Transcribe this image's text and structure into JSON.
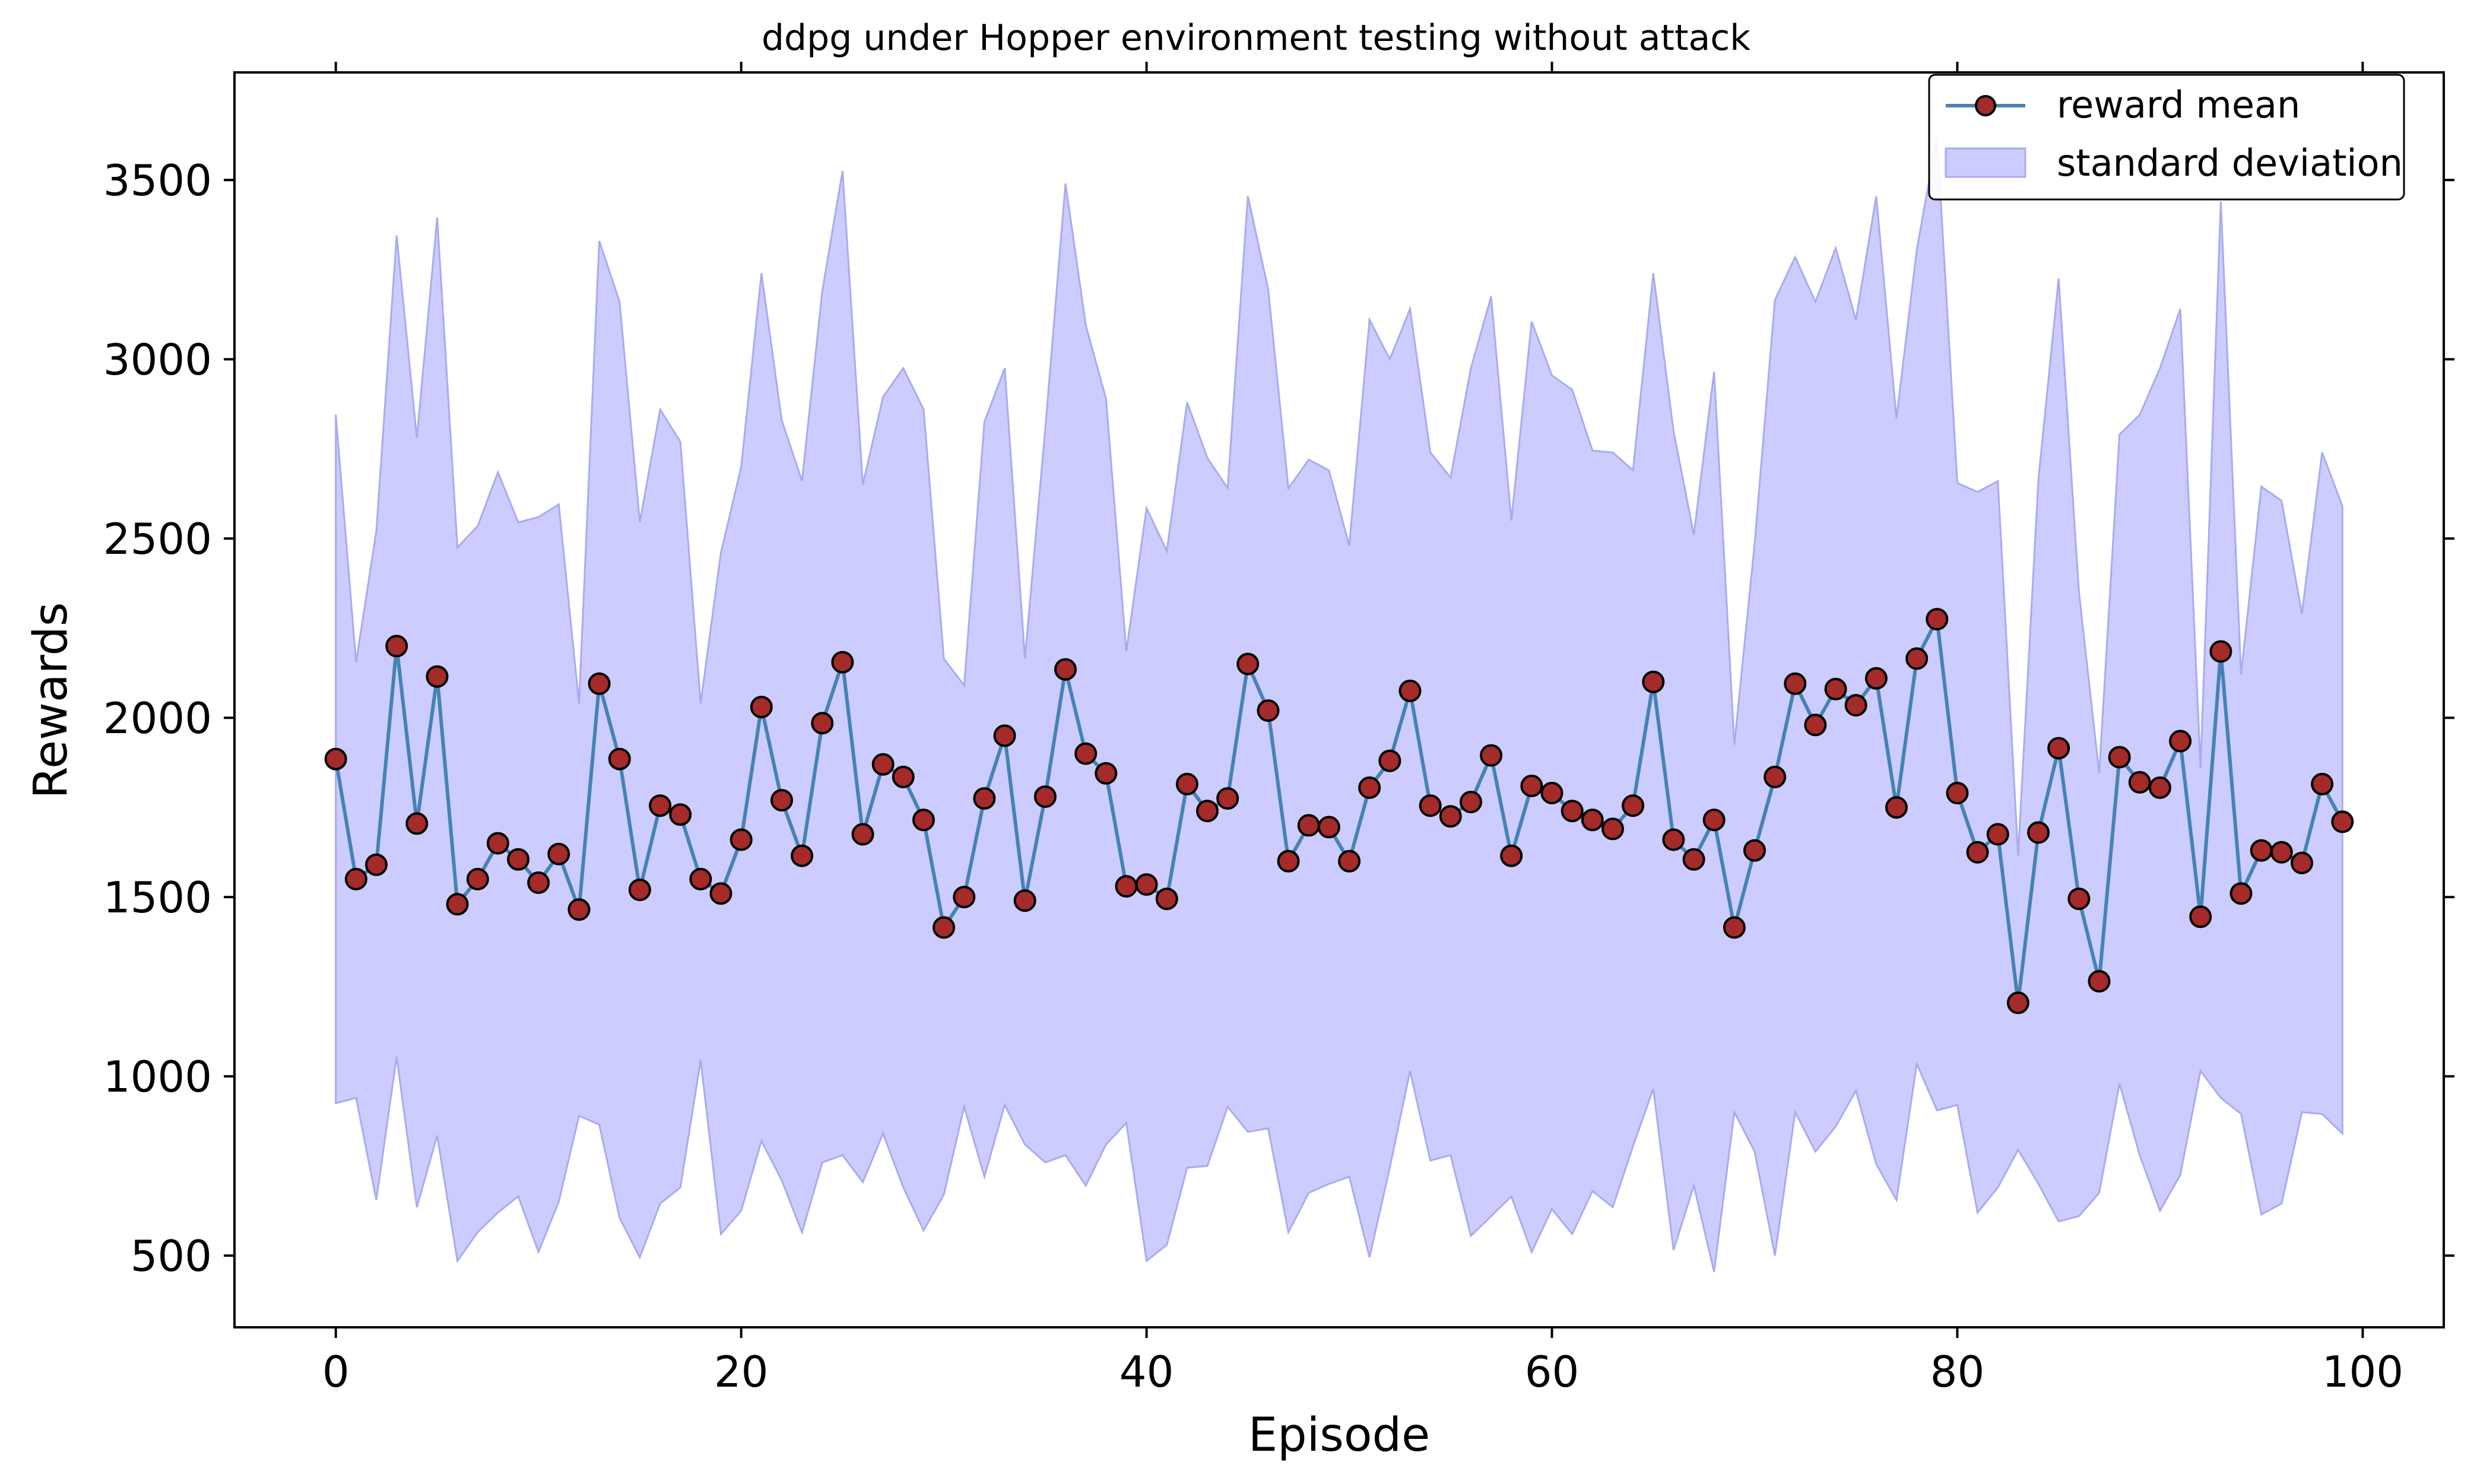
{
  "chart_data": {
    "type": "line",
    "title": "ddpg under Hopper environment testing without attack",
    "xlabel": "Episode",
    "ylabel": "Rewards",
    "xlim": [
      -5,
      104
    ],
    "ylim": [
      300,
      3800
    ],
    "xticks": [
      0,
      20,
      40,
      60,
      80,
      100
    ],
    "yticks": [
      500,
      1000,
      1500,
      2000,
      2500,
      3000,
      3500
    ],
    "grid": false,
    "legend_position": "top-right",
    "colors": {
      "line": "#4682b4",
      "marker_fill": "#a52a2a",
      "marker_edge": "#000000",
      "band": "#ccccff",
      "band_edge": "#aaaaf0"
    },
    "series": [
      {
        "name": "reward mean",
        "kind": "line",
        "x": [
          0,
          1,
          2,
          3,
          4,
          5,
          6,
          7,
          8,
          9,
          10,
          11,
          12,
          13,
          14,
          15,
          16,
          17,
          18,
          19,
          20,
          21,
          22,
          23,
          24,
          25,
          26,
          27,
          28,
          29,
          30,
          31,
          32,
          33,
          34,
          35,
          36,
          37,
          38,
          39,
          40,
          41,
          42,
          43,
          44,
          45,
          46,
          47,
          48,
          49,
          50,
          51,
          52,
          53,
          54,
          55,
          56,
          57,
          58,
          59,
          60,
          61,
          62,
          63,
          64,
          65,
          66,
          67,
          68,
          69,
          70,
          71,
          72,
          73,
          74,
          75,
          76,
          77,
          78,
          79,
          80,
          81,
          82,
          83,
          84,
          85,
          86,
          87,
          88,
          89,
          90,
          91,
          92,
          93,
          94,
          95,
          96,
          97,
          98,
          99
        ],
        "values": [
          1885,
          1550,
          1590,
          2200,
          1705,
          2115,
          1480,
          1550,
          1650,
          1605,
          1540,
          1620,
          1465,
          2095,
          1885,
          1520,
          1755,
          1730,
          1550,
          1510,
          1660,
          2030,
          1770,
          1615,
          1985,
          2155,
          1675,
          1870,
          1835,
          1715,
          1415,
          1500,
          1775,
          1950,
          1490,
          1780,
          2135,
          1900,
          1845,
          1530,
          1535,
          1495,
          1815,
          1740,
          1775,
          2150,
          2020,
          1600,
          1700,
          1695,
          1600,
          1805,
          1880,
          2075,
          1755,
          1725,
          1765,
          1895,
          1615,
          1810,
          1790,
          1740,
          1715,
          1690,
          1755,
          2100,
          1660,
          1605,
          1715,
          1415,
          1630,
          1835,
          2095,
          1980,
          2080,
          2035,
          2110,
          1750,
          2165,
          2275,
          1790,
          1625,
          1675,
          1205,
          1680,
          1915,
          1495,
          1265,
          1890,
          1820,
          1805,
          1935,
          1445,
          2185,
          1510,
          1630,
          1625,
          1595,
          1815,
          1710
        ]
      },
      {
        "name": "standard deviation",
        "kind": "band",
        "upper": [
          2845,
          2155,
          2520,
          3345,
          2780,
          3395,
          2475,
          2535,
          2685,
          2545,
          2560,
          2595,
          2040,
          3330,
          3160,
          2545,
          2860,
          2770,
          2040,
          2460,
          2700,
          3240,
          2830,
          2660,
          3190,
          3525,
          2650,
          2895,
          2975,
          2860,
          2165,
          2090,
          2825,
          2975,
          2165,
          2805,
          3490,
          3095,
          2890,
          2185,
          2585,
          2465,
          2880,
          2725,
          2640,
          3455,
          3195,
          2640,
          2720,
          2690,
          2480,
          3110,
          3000,
          3140,
          2740,
          2670,
          2975,
          3175,
          2550,
          3105,
          2955,
          2915,
          2745,
          2740,
          2690,
          3240,
          2800,
          2510,
          2965,
          1925,
          2485,
          3165,
          3285,
          3160,
          3310,
          3110,
          3455,
          2835,
          3305,
          3620,
          2655,
          2630,
          2660,
          1615,
          2665,
          3225,
          2350,
          1845,
          2790,
          2845,
          2975,
          3140,
          1860,
          3440,
          2120,
          2645,
          2605,
          2290,
          2740,
          2590
        ],
        "lower": [
          925,
          940,
          655,
          1055,
          635,
          835,
          485,
          565,
          620,
          665,
          510,
          650,
          890,
          865,
          605,
          495,
          645,
          690,
          1045,
          560,
          625,
          820,
          710,
          565,
          760,
          780,
          705,
          840,
          690,
          570,
          670,
          915,
          720,
          920,
          810,
          760,
          780,
          695,
          810,
          870,
          485,
          530,
          745,
          750,
          915,
          845,
          855,
          565,
          675,
          700,
          720,
          495,
          745,
          1015,
          765,
          780,
          555,
          610,
          665,
          510,
          630,
          560,
          680,
          635,
          805,
          965,
          515,
          695,
          455,
          900,
          790,
          500,
          900,
          790,
          860,
          960,
          755,
          655,
          1035,
          905,
          920,
          620,
          690,
          795,
          700,
          595,
          610,
          675,
          980,
          780,
          625,
          725,
          1015,
          940,
          895,
          615,
          645,
          900,
          895,
          840
        ]
      }
    ]
  }
}
